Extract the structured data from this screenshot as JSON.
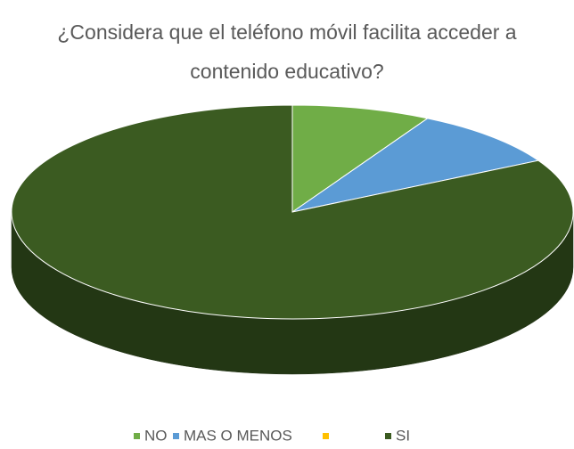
{
  "chart_data": {
    "type": "pie",
    "title": "¿Considera que el teléfono móvil facilita acceder a contenido educativo?",
    "categories": [
      "NO",
      "MAS O MENOS",
      null,
      "SI"
    ],
    "values": [
      8,
      9,
      0,
      83
    ],
    "colors": [
      "#70ad47",
      "#5b9bd5",
      "#ffc000",
      "#3b5b21"
    ],
    "three_d": true,
    "legend": "bottom"
  }
}
